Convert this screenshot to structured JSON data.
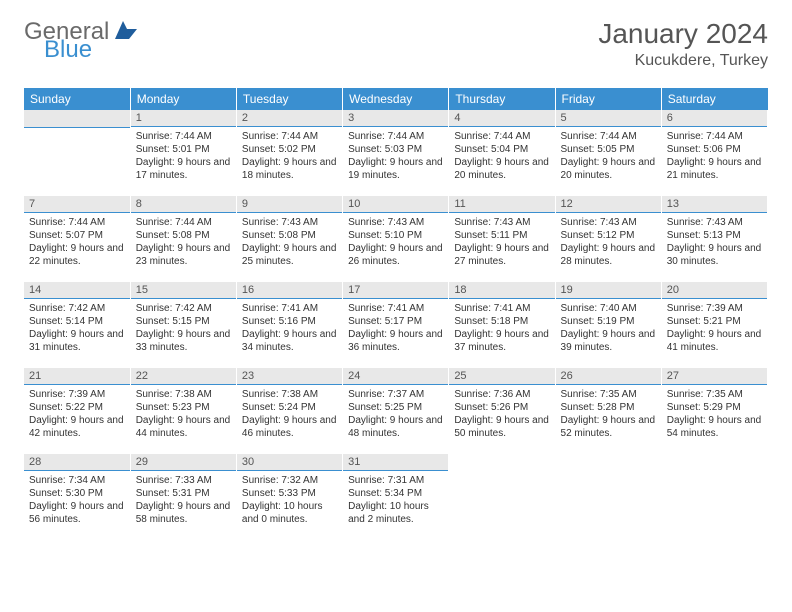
{
  "logo": {
    "text1": "General",
    "text2": "Blue"
  },
  "title": "January 2024",
  "location": "Kucukdere, Turkey",
  "colors": {
    "header_bg": "#3a8fd0",
    "daynum_bg": "#e8e8e8",
    "rule": "#3a8fd0",
    "text": "#333333"
  },
  "weekdays": [
    "Sunday",
    "Monday",
    "Tuesday",
    "Wednesday",
    "Thursday",
    "Friday",
    "Saturday"
  ],
  "weeks": [
    [
      null,
      {
        "n": "1",
        "sr": "7:44 AM",
        "ss": "5:01 PM",
        "dl": "9 hours and 17 minutes."
      },
      {
        "n": "2",
        "sr": "7:44 AM",
        "ss": "5:02 PM",
        "dl": "9 hours and 18 minutes."
      },
      {
        "n": "3",
        "sr": "7:44 AM",
        "ss": "5:03 PM",
        "dl": "9 hours and 19 minutes."
      },
      {
        "n": "4",
        "sr": "7:44 AM",
        "ss": "5:04 PM",
        "dl": "9 hours and 20 minutes."
      },
      {
        "n": "5",
        "sr": "7:44 AM",
        "ss": "5:05 PM",
        "dl": "9 hours and 20 minutes."
      },
      {
        "n": "6",
        "sr": "7:44 AM",
        "ss": "5:06 PM",
        "dl": "9 hours and 21 minutes."
      }
    ],
    [
      {
        "n": "7",
        "sr": "7:44 AM",
        "ss": "5:07 PM",
        "dl": "9 hours and 22 minutes."
      },
      {
        "n": "8",
        "sr": "7:44 AM",
        "ss": "5:08 PM",
        "dl": "9 hours and 23 minutes."
      },
      {
        "n": "9",
        "sr": "7:43 AM",
        "ss": "5:08 PM",
        "dl": "9 hours and 25 minutes."
      },
      {
        "n": "10",
        "sr": "7:43 AM",
        "ss": "5:10 PM",
        "dl": "9 hours and 26 minutes."
      },
      {
        "n": "11",
        "sr": "7:43 AM",
        "ss": "5:11 PM",
        "dl": "9 hours and 27 minutes."
      },
      {
        "n": "12",
        "sr": "7:43 AM",
        "ss": "5:12 PM",
        "dl": "9 hours and 28 minutes."
      },
      {
        "n": "13",
        "sr": "7:43 AM",
        "ss": "5:13 PM",
        "dl": "9 hours and 30 minutes."
      }
    ],
    [
      {
        "n": "14",
        "sr": "7:42 AM",
        "ss": "5:14 PM",
        "dl": "9 hours and 31 minutes."
      },
      {
        "n": "15",
        "sr": "7:42 AM",
        "ss": "5:15 PM",
        "dl": "9 hours and 33 minutes."
      },
      {
        "n": "16",
        "sr": "7:41 AM",
        "ss": "5:16 PM",
        "dl": "9 hours and 34 minutes."
      },
      {
        "n": "17",
        "sr": "7:41 AM",
        "ss": "5:17 PM",
        "dl": "9 hours and 36 minutes."
      },
      {
        "n": "18",
        "sr": "7:41 AM",
        "ss": "5:18 PM",
        "dl": "9 hours and 37 minutes."
      },
      {
        "n": "19",
        "sr": "7:40 AM",
        "ss": "5:19 PM",
        "dl": "9 hours and 39 minutes."
      },
      {
        "n": "20",
        "sr": "7:39 AM",
        "ss": "5:21 PM",
        "dl": "9 hours and 41 minutes."
      }
    ],
    [
      {
        "n": "21",
        "sr": "7:39 AM",
        "ss": "5:22 PM",
        "dl": "9 hours and 42 minutes."
      },
      {
        "n": "22",
        "sr": "7:38 AM",
        "ss": "5:23 PM",
        "dl": "9 hours and 44 minutes."
      },
      {
        "n": "23",
        "sr": "7:38 AM",
        "ss": "5:24 PM",
        "dl": "9 hours and 46 minutes."
      },
      {
        "n": "24",
        "sr": "7:37 AM",
        "ss": "5:25 PM",
        "dl": "9 hours and 48 minutes."
      },
      {
        "n": "25",
        "sr": "7:36 AM",
        "ss": "5:26 PM",
        "dl": "9 hours and 50 minutes."
      },
      {
        "n": "26",
        "sr": "7:35 AM",
        "ss": "5:28 PM",
        "dl": "9 hours and 52 minutes."
      },
      {
        "n": "27",
        "sr": "7:35 AM",
        "ss": "5:29 PM",
        "dl": "9 hours and 54 minutes."
      }
    ],
    [
      {
        "n": "28",
        "sr": "7:34 AM",
        "ss": "5:30 PM",
        "dl": "9 hours and 56 minutes."
      },
      {
        "n": "29",
        "sr": "7:33 AM",
        "ss": "5:31 PM",
        "dl": "9 hours and 58 minutes."
      },
      {
        "n": "30",
        "sr": "7:32 AM",
        "ss": "5:33 PM",
        "dl": "10 hours and 0 minutes."
      },
      {
        "n": "31",
        "sr": "7:31 AM",
        "ss": "5:34 PM",
        "dl": "10 hours and 2 minutes."
      },
      null,
      null,
      null
    ]
  ],
  "labels": {
    "sunrise": "Sunrise:",
    "sunset": "Sunset:",
    "daylight": "Daylight:"
  }
}
